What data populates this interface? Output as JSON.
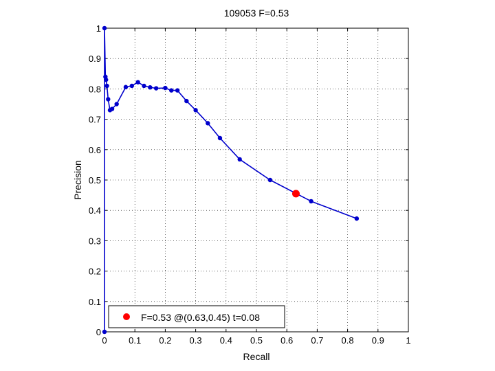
{
  "chart_data": {
    "type": "line",
    "title": "109053 F=0.53",
    "xlabel": "Recall",
    "ylabel": "Precision",
    "xlim": [
      0,
      1
    ],
    "ylim": [
      0,
      1
    ],
    "xticks": [
      0,
      0.1,
      0.2,
      0.3,
      0.4,
      0.5,
      0.6,
      0.7,
      0.8,
      0.9,
      1
    ],
    "yticks": [
      0,
      0.1,
      0.2,
      0.3,
      0.4,
      0.5,
      0.6,
      0.7,
      0.8,
      0.9,
      1
    ],
    "xtick_labels": [
      "0",
      "0.1",
      "0.2",
      "0.3",
      "0.4",
      "0.5",
      "0.6",
      "0.7",
      "0.8",
      "0.9",
      "1"
    ],
    "ytick_labels": [
      "0",
      "0.1",
      "0.2",
      "0.3",
      "0.4",
      "0.5",
      "0.6",
      "0.7",
      "0.8",
      "0.9",
      "1"
    ],
    "grid": true,
    "series": [
      {
        "color": "#0000cc",
        "x": [
          0,
          0,
          0.003,
          0.005,
          0.008,
          0.012,
          0.018,
          0.025,
          0.04,
          0.07,
          0.09,
          0.11,
          0.13,
          0.15,
          0.17,
          0.2,
          0.22,
          0.24,
          0.27,
          0.3,
          0.34,
          0.38,
          0.445,
          0.545,
          0.68,
          0.83
        ],
        "y": [
          0,
          1.0,
          0.84,
          0.83,
          0.81,
          0.766,
          0.73,
          0.734,
          0.75,
          0.806,
          0.81,
          0.822,
          0.81,
          0.805,
          0.802,
          0.803,
          0.795,
          0.795,
          0.76,
          0.73,
          0.687,
          0.638,
          0.568,
          0.5,
          0.43,
          0.373
        ]
      }
    ],
    "highlight": {
      "x": 0.63,
      "y": 0.455,
      "color": "#ff0000"
    },
    "legend": {
      "placement": "bottom-left",
      "text": "F=0.53 @(0.63,0.45) t=0.08"
    }
  }
}
